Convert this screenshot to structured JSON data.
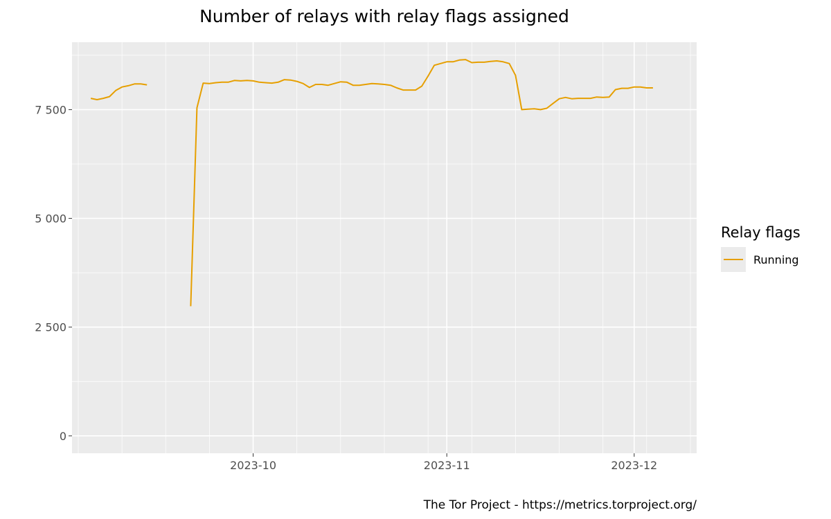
{
  "chart_data": {
    "type": "line",
    "title": "Number of relays with relay flags assigned",
    "xlabel": "",
    "ylabel": "",
    "x_ticks": [
      "2023-10",
      "2023-11",
      "2023-12"
    ],
    "y_ticks": [
      "0",
      "2 500",
      "5 000",
      "7 500"
    ],
    "ylim": [
      -400,
      9050
    ],
    "xlim": [
      "2023-09-02",
      "2023-12-11"
    ],
    "grid": true,
    "legend": {
      "title": "Relay flags",
      "placement": "right"
    },
    "caption": "The Tor Project - https://metrics.torproject.org/",
    "series": [
      {
        "name": "Running",
        "color": "#E69F00",
        "segments": [
          {
            "start": "2023-09-05",
            "values": [
              7760,
              7730,
              7760,
              7800,
              7940,
              8020,
              8050,
              8090,
              8090,
              8070
            ]
          },
          {
            "start": "2023-09-21",
            "values": [
              2980,
              7540,
              8110,
              8100,
              8120,
              8130,
              8130,
              8170,
              8160,
              8170,
              8160,
              8130,
              8120,
              8110,
              8130,
              8190,
              8180,
              8150,
              8100,
              8010,
              8080,
              8080,
              8060,
              8100,
              8140,
              8130,
              8060,
              8060,
              8080,
              8100,
              8090,
              8080,
              8060,
              8000,
              7950,
              7950,
              7950,
              8040,
              8270,
              8520,
              8560,
              8600,
              8600,
              8640,
              8650,
              8580,
              8590,
              8590,
              8610,
              8620,
              8600,
              8560,
              8290,
              7500,
              7510,
              7520,
              7500,
              7530,
              7640,
              7750,
              7780,
              7750,
              7760,
              7760,
              7760,
              7790,
              7780,
              7790,
              7960,
              7990,
              7990,
              8020,
              8020,
              8000,
              8000
            ]
          }
        ]
      }
    ]
  }
}
